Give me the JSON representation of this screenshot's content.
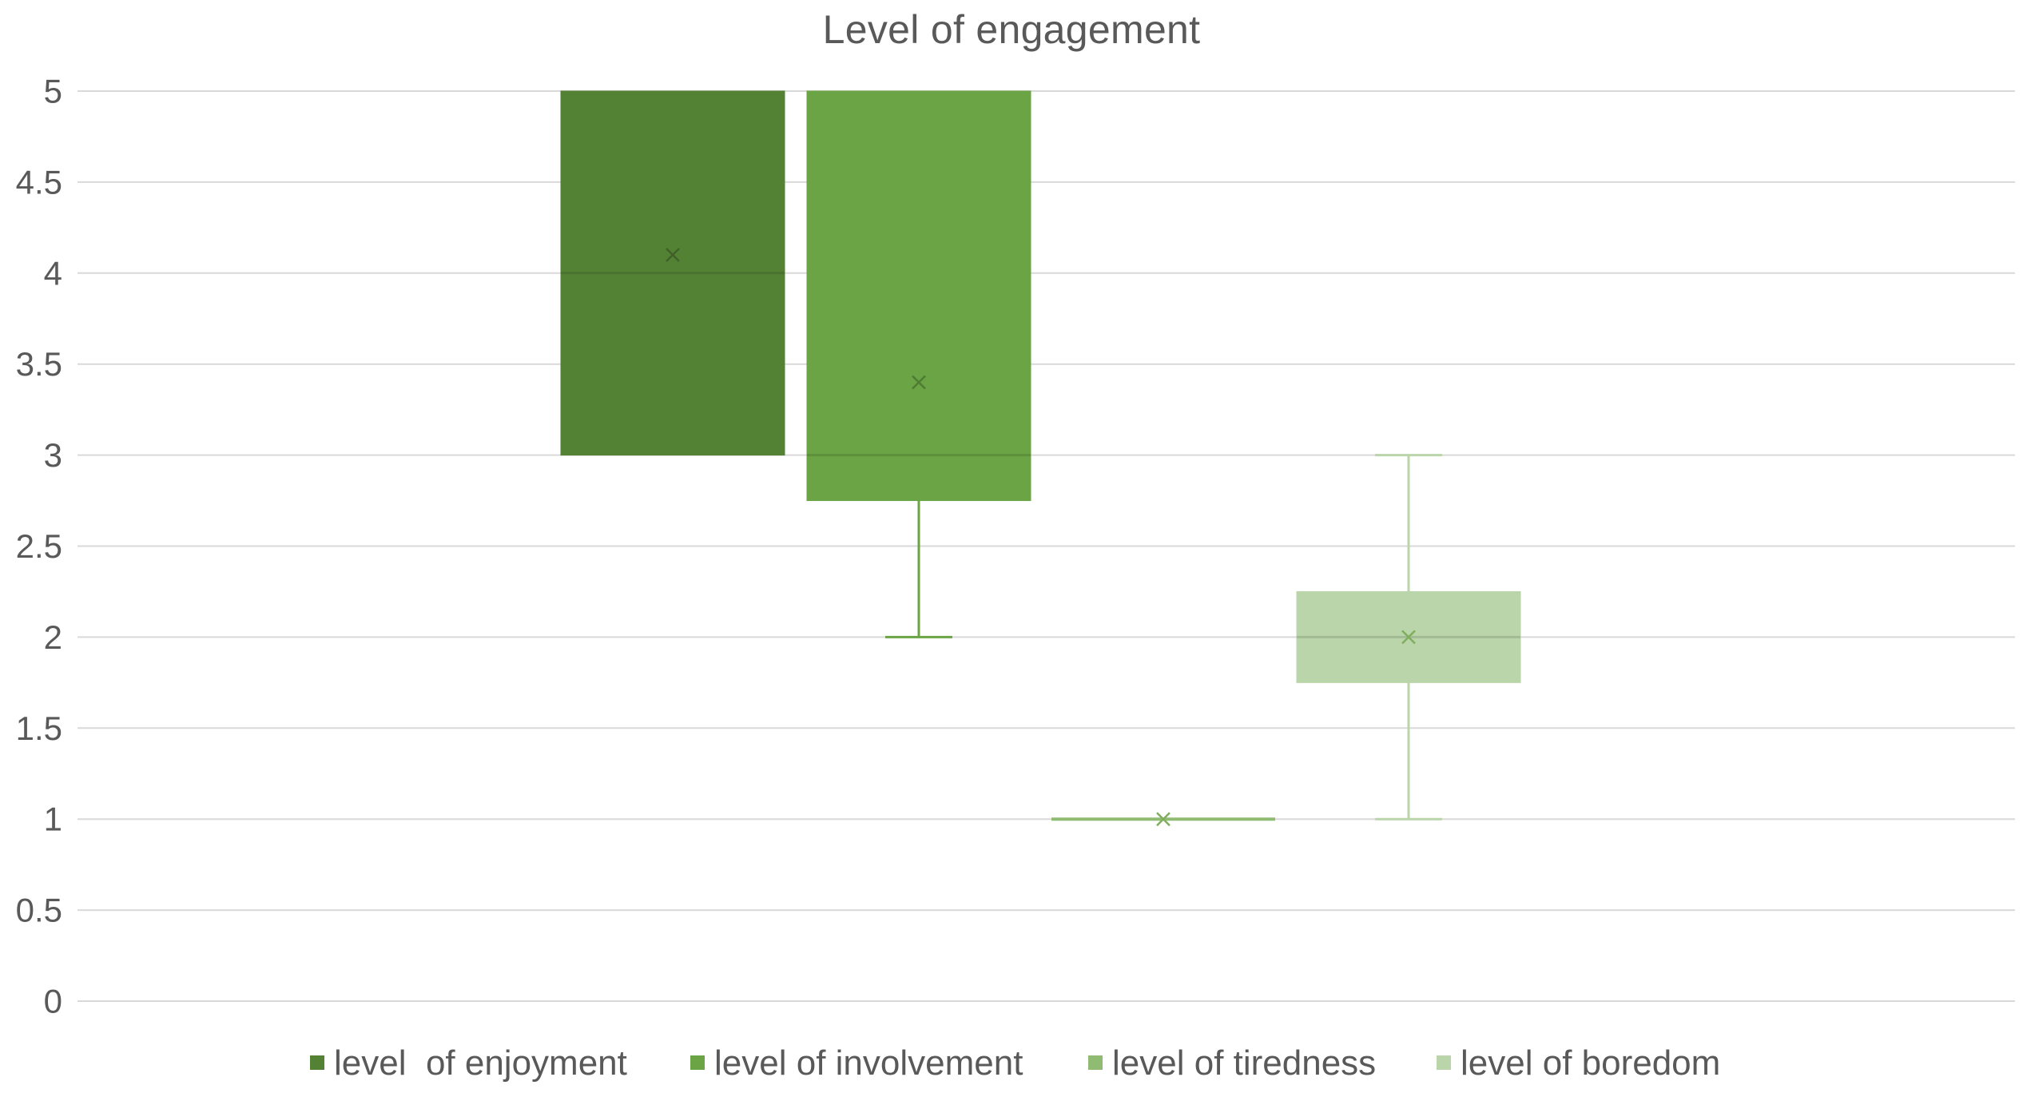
{
  "chart_data": {
    "type": "box",
    "title": "Level of engagement",
    "xlabel": "",
    "ylabel": "",
    "ylim": [
      0,
      5
    ],
    "yticks": [
      0,
      0.5,
      1,
      1.5,
      2,
      2.5,
      3,
      3.5,
      4,
      4.5,
      5
    ],
    "ytick_labels": [
      "0",
      "0.5",
      "1",
      "1.5",
      "2",
      "2.5",
      "3",
      "3.5",
      "4",
      "4.5",
      "5"
    ],
    "grid": true,
    "legend_position": "bottom",
    "series": [
      {
        "name": "level  of enjoyment",
        "color": "#548235",
        "min": 3,
        "q1": 3,
        "median": 4,
        "q3": 5,
        "max": 5,
        "mean": 4.1
      },
      {
        "name": "level of involvement",
        "color": "#6aa444",
        "min": 2,
        "q1": 2.75,
        "median": 3,
        "q3": 5,
        "max": 5,
        "mean": 3.4
      },
      {
        "name": "level of tiredness",
        "color": "#8fbc72",
        "min": 1,
        "q1": 1,
        "median": 1,
        "q3": 1,
        "max": 1,
        "mean": 1
      },
      {
        "name": "level of boredom",
        "color": "#bad5a9",
        "min": 1,
        "q1": 1.75,
        "median": 2,
        "q3": 2.25,
        "max": 3,
        "mean": 2
      }
    ]
  }
}
